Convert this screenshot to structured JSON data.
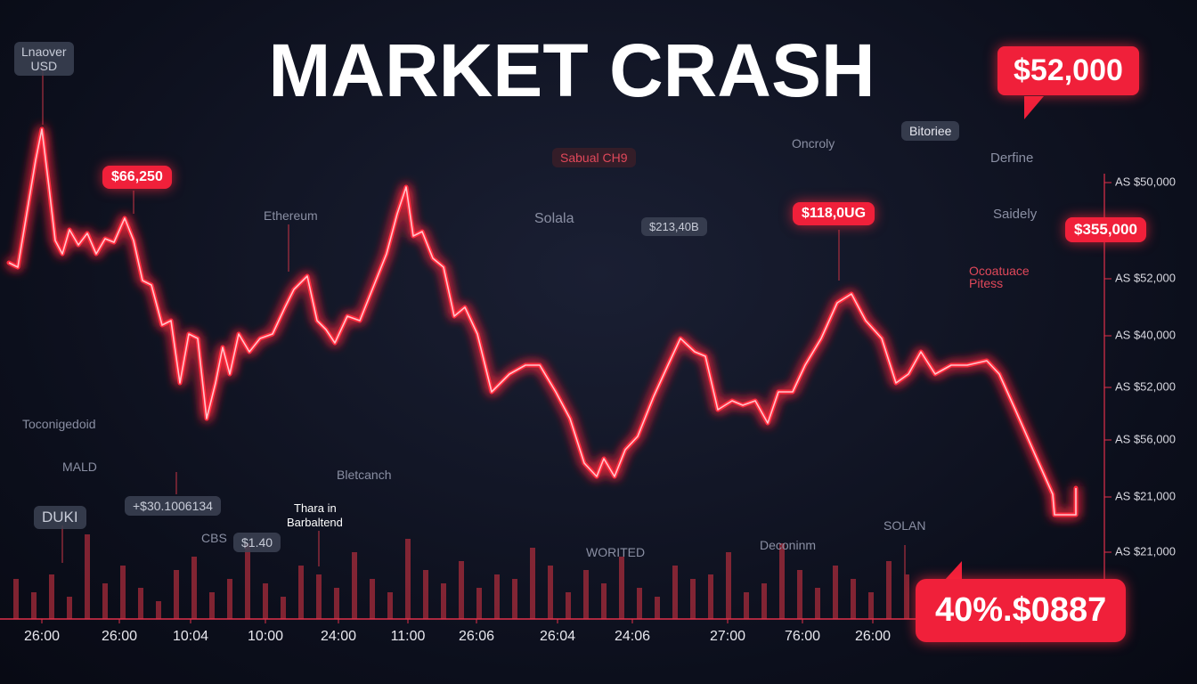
{
  "chart_data": {
    "type": "line",
    "title": "MARKET CRASH",
    "color": "#ff2a3c",
    "xlim": [
      0,
      1240
    ],
    "ylim": [
      0,
      565
    ],
    "x": [
      10,
      20,
      30,
      40,
      47,
      55,
      62,
      70,
      78,
      88,
      98,
      108,
      118,
      128,
      140,
      150,
      160,
      170,
      182,
      192,
      202,
      212,
      222,
      232,
      242,
      250,
      258,
      268,
      280,
      292,
      306,
      320,
      330,
      345,
      356,
      366,
      376,
      390,
      404,
      420,
      434,
      446,
      456,
      464,
      474,
      486,
      498,
      510,
      522,
      536,
      552,
      572,
      590,
      606,
      624,
      640,
      656,
      670,
      678,
      690,
      702,
      716,
      734,
      750,
      764,
      780,
      792,
      806,
      822,
      834,
      848,
      862,
      874,
      890,
      904,
      922,
      940,
      956,
      972,
      990,
      1006,
      1020,
      1034,
      1050,
      1068,
      1086,
      1108,
      1122,
      1140,
      1162,
      1182,
      1184,
      1208,
      1208
    ],
    "values": [
      400,
      395,
      455,
      515,
      550,
      485,
      425,
      410,
      437,
      420,
      433,
      410,
      427,
      423,
      450,
      425,
      380,
      375,
      330,
      335,
      265,
      320,
      315,
      225,
      265,
      305,
      275,
      320,
      300,
      315,
      320,
      350,
      370,
      385,
      335,
      325,
      310,
      340,
      335,
      375,
      410,
      455,
      485,
      430,
      435,
      405,
      395,
      340,
      350,
      320,
      255,
      275,
      285,
      285,
      255,
      225,
      175,
      160,
      180,
      160,
      190,
      205,
      250,
      285,
      315,
      300,
      295,
      235,
      245,
      240,
      245,
      220,
      255,
      255,
      285,
      315,
      355,
      365,
      335,
      315,
      265,
      275,
      300,
      275,
      285,
      285,
      290,
      275,
      235,
      185,
      140,
      117,
      117,
      147
    ],
    "xticks": [
      {
        "value": 47,
        "label": "26:00"
      },
      {
        "value": 134,
        "label": "26:00"
      },
      {
        "value": 214,
        "label": "10:04"
      },
      {
        "value": 298,
        "label": "10:00"
      },
      {
        "value": 380,
        "label": "24:00"
      },
      {
        "value": 458,
        "label": "11:00"
      },
      {
        "value": 535,
        "label": "26:06"
      },
      {
        "value": 626,
        "label": "26:04"
      },
      {
        "value": 710,
        "label": "24:06"
      },
      {
        "value": 817,
        "label": "27:00"
      },
      {
        "value": 901,
        "label": "76:00"
      },
      {
        "value": 980,
        "label": "26:00"
      }
    ],
    "axis_labels": [
      "AS $50,000",
      "AS $52,000",
      "AS $40,000",
      "AS $52,000",
      "AS $56,000",
      "AS $21,000",
      "AS $21,000"
    ],
    "annotations": [
      "Lnaover",
      "USD",
      "$52,000",
      "$66,250",
      "$355,000",
      "$118,0UG",
      "40%.$0887",
      "Sabual CH9",
      "Ethereum",
      "Solala",
      "$213,40B",
      "Oncroly",
      "Bitoriee",
      "Derfine",
      "Saidely",
      "Ocoatuace",
      "Pitess",
      "Toconigedoid",
      "MALD",
      "DUKI",
      "+$30.1006134",
      "CBS",
      "$1.40",
      "Thara in",
      "Barbaltend",
      "Bletcanch",
      "WORITED",
      "Deconinm",
      "SOLAN"
    ],
    "volume": {
      "type": "bar",
      "color": "#c0303f",
      "ylim": [
        0,
        100
      ],
      "x": [
        18,
        38,
        58,
        78,
        98,
        118,
        138,
        158,
        178,
        198,
        218,
        238,
        258,
        278,
        298,
        318,
        338,
        358,
        378,
        398,
        418,
        438,
        458,
        478,
        498,
        518,
        538,
        558,
        578,
        598,
        618,
        638,
        658,
        678,
        698,
        718,
        738,
        758,
        778,
        798,
        818,
        838,
        858,
        878,
        898,
        918,
        938,
        958,
        978,
        998,
        1018
      ],
      "values": [
        45,
        30,
        50,
        25,
        95,
        40,
        60,
        35,
        20,
        55,
        70,
        30,
        45,
        85,
        40,
        25,
        60,
        50,
        35,
        75,
        45,
        30,
        90,
        55,
        40,
        65,
        35,
        50,
        45,
        80,
        60,
        30,
        55,
        40,
        70,
        35,
        25,
        60,
        45,
        50,
        75,
        30,
        40,
        85,
        55,
        35,
        60,
        45,
        30,
        65,
        50
      ]
    }
  }
}
